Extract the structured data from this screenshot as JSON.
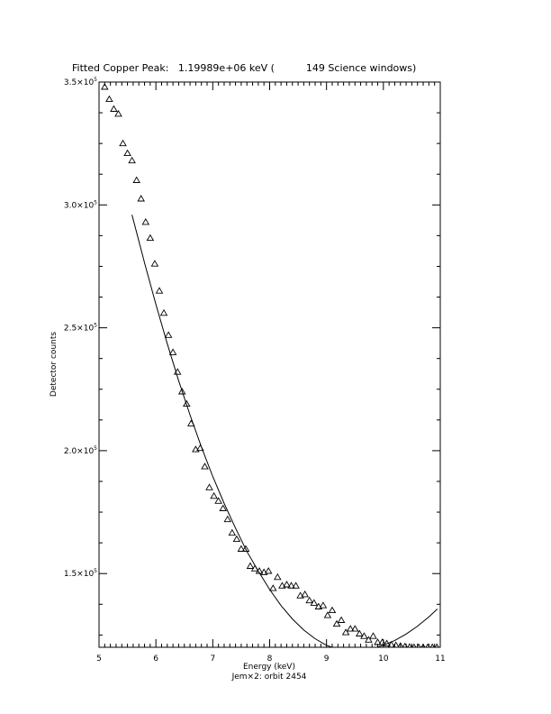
{
  "chart_data": {
    "type": "scatter",
    "title": "Fitted Copper Peak:   1.19989e+06 keV (          149 Science windows)",
    "xlabel": "Energy (keV)",
    "subtitle": "Jem×2: orbit 2454",
    "ylabel": "Detector counts",
    "xlim": [
      5,
      11
    ],
    "ylim": [
      120000,
      350000
    ],
    "x_ticks": [
      5,
      6,
      7,
      8,
      9,
      10,
      11
    ],
    "x_tick_labels": [
      "5",
      "6",
      "7",
      "8",
      "9",
      "10",
      "11"
    ],
    "y_ticks": [
      150000,
      200000,
      250000,
      300000,
      350000
    ],
    "y_tick_labels": [
      {
        "mantissa": "1.5×10",
        "exp": "5"
      },
      {
        "mantissa": "2.0×10",
        "exp": "5"
      },
      {
        "mantissa": "2.5×10",
        "exp": "5"
      },
      {
        "mantissa": "3.0×10",
        "exp": "5"
      },
      {
        "mantissa": "3.5×10",
        "exp": "5"
      }
    ],
    "marker": "triangle",
    "grid": false,
    "series": [
      {
        "kind": "points",
        "x": [
          5.1,
          5.18,
          5.26,
          5.34,
          5.42,
          5.5,
          5.58,
          5.66,
          5.74,
          5.82,
          5.9,
          5.98,
          6.06,
          6.14,
          6.22,
          6.3,
          6.38,
          6.46,
          6.54,
          6.62,
          6.7,
          6.78,
          6.86,
          6.94,
          7.02,
          7.1,
          7.18,
          7.26,
          7.34,
          7.42,
          7.5,
          7.58,
          7.66,
          7.74,
          7.82,
          7.9,
          7.98,
          8.06,
          8.14,
          8.22,
          8.3,
          8.38,
          8.46,
          8.54,
          8.62,
          8.7,
          8.78,
          8.86,
          8.94,
          9.02,
          9.1,
          9.18,
          9.26,
          9.34,
          9.42,
          9.5,
          9.58,
          9.66,
          9.74,
          9.82,
          9.9,
          9.98,
          10.06,
          10.14,
          10.22,
          10.3,
          10.38,
          10.46,
          10.54,
          10.62,
          10.7,
          10.78,
          10.86,
          10.94
        ],
        "y": [
          348000,
          343000,
          339000,
          337000,
          325000,
          321000,
          318000,
          310000,
          302500,
          293000,
          286500,
          276000,
          265000,
          256000,
          247000,
          240000,
          232000,
          224000,
          219000,
          211000,
          200500,
          201000,
          193500,
          185000,
          181500,
          179500,
          176500,
          172000,
          166500,
          164000,
          160000,
          160000,
          153000,
          152000,
          151000,
          150500,
          151000,
          144000,
          148500,
          145000,
          145500,
          145000,
          145000,
          141000,
          141500,
          139000,
          138000,
          136500,
          137000,
          133000,
          135000,
          129500,
          131000,
          126000,
          127500,
          127500,
          125500,
          124500,
          123000,
          124500,
          122000,
          122000,
          121500,
          121000,
          120800,
          120500,
          120300,
          120100,
          120000,
          120000,
          120000,
          120000,
          120000,
          120000
        ]
      },
      {
        "kind": "fit",
        "x": [
          5.58,
          5.8,
          6.0,
          6.2,
          6.4,
          6.6,
          6.8,
          7.0,
          7.2,
          7.4,
          7.6,
          7.8,
          8.0,
          8.2,
          8.4,
          8.6,
          8.8,
          9.0,
          9.2,
          9.4,
          9.6,
          9.8,
          10.0,
          10.2,
          10.4,
          10.6,
          10.8,
          10.95
        ],
        "y": [
          296000,
          276500,
          259500,
          243500,
          228500,
          214500,
          201500,
          189500,
          178500,
          168500,
          159000,
          151000,
          143500,
          137000,
          131500,
          127000,
          123500,
          120800,
          119200,
          118600,
          118700,
          119400,
          120800,
          122800,
          125400,
          128600,
          132400,
          135600
        ]
      }
    ]
  }
}
